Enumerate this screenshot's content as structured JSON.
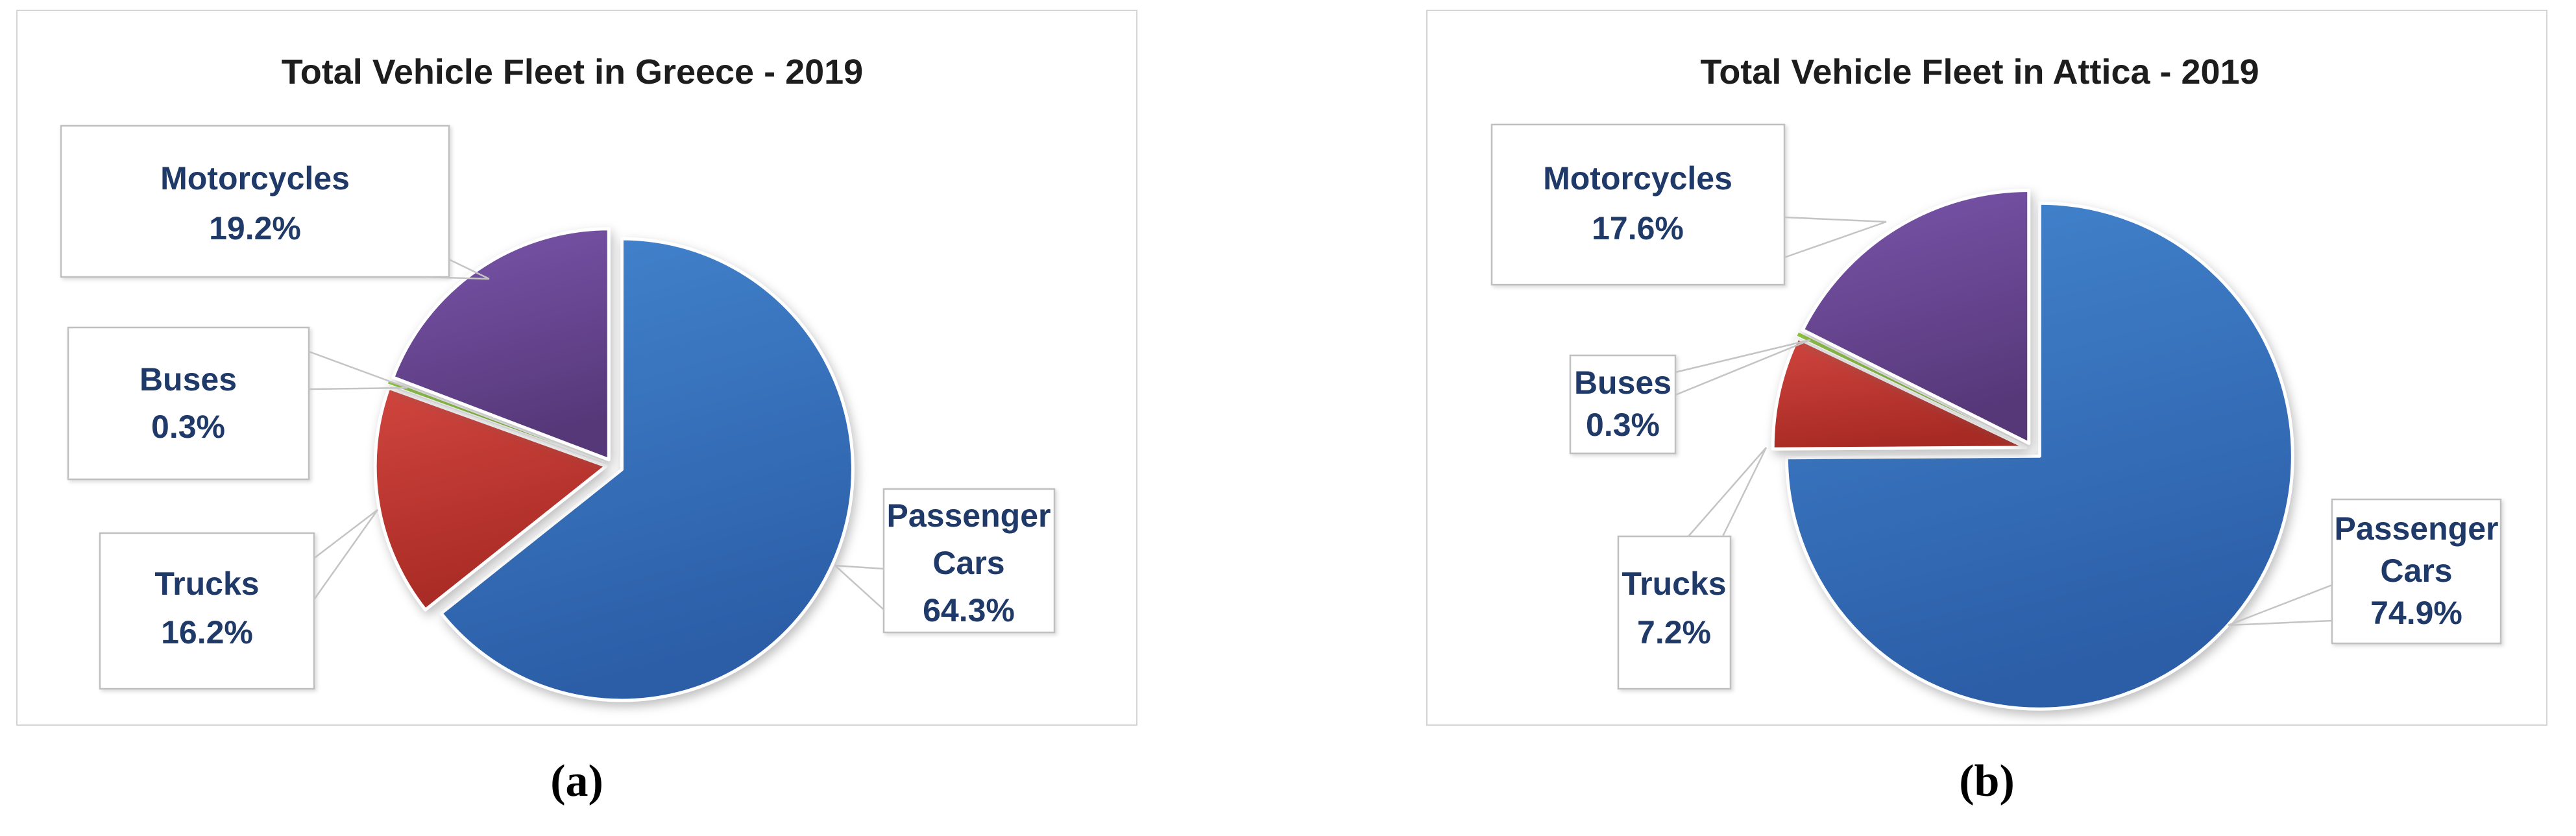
{
  "figure": {
    "captions": {
      "a": "(a)",
      "b": "(b)"
    }
  },
  "palette": {
    "passenger_cars": {
      "from": "#4384CE",
      "to": "#2B5EA7"
    },
    "trucks": {
      "from": "#D0453E",
      "to": "#A82A24"
    },
    "buses": {
      "from": "#8EC63F",
      "to": "#76B32C"
    },
    "motorcycles": {
      "from": "#7B55AB",
      "to": "#563879"
    },
    "label_text": "#1F3A68",
    "box_border": "#C0C0C0",
    "leader_line": "#C4C4C4",
    "frame_border": "#D4D4D4",
    "title_color": "#1D1D1D"
  },
  "charts": [
    {
      "title": "Total Vehicle Fleet in Greece - 2019",
      "chart_data": {
        "type": "pie",
        "categories": [
          "Passenger Cars",
          "Trucks",
          "Buses",
          "Motorcycles"
        ],
        "values": [
          64.3,
          16.2,
          0.3,
          19.2
        ],
        "title": "Total Vehicle Fleet in Greece - 2019",
        "start_angle_deg": 0,
        "direction": "clockwise",
        "exploded": true,
        "legend": "none",
        "colors_key": [
          "passenger_cars",
          "trucks",
          "buses",
          "motorcycles"
        ]
      },
      "labels": {
        "motorcycles": {
          "name": "Motorcycles",
          "pct": "19.2%"
        },
        "buses": {
          "name": "Buses",
          "pct": "0.3%"
        },
        "trucks": {
          "name": "Trucks",
          "pct": "16.2%"
        },
        "passenger_cars": {
          "line1": "Passenger",
          "line2": "Cars",
          "pct": "64.3%"
        }
      }
    },
    {
      "title": "Total Vehicle Fleet in Attica - 2019",
      "chart_data": {
        "type": "pie",
        "categories": [
          "Passenger Cars",
          "Trucks",
          "Buses",
          "Motorcycles"
        ],
        "values": [
          74.9,
          7.2,
          0.3,
          17.6
        ],
        "title": "Total Vehicle Fleet in Attica - 2019",
        "start_angle_deg": 0,
        "direction": "clockwise",
        "exploded": true,
        "legend": "none",
        "colors_key": [
          "passenger_cars",
          "trucks",
          "buses",
          "motorcycles"
        ]
      },
      "labels": {
        "motorcycles": {
          "name": "Motorcycles",
          "pct": "17.6%"
        },
        "buses": {
          "name": "Buses",
          "pct": "0.3%"
        },
        "trucks": {
          "name": "Trucks",
          "pct": "7.2%"
        },
        "passenger_cars": {
          "line1": "Passenger",
          "line2": "Cars",
          "pct": "74.9%"
        }
      }
    }
  ]
}
